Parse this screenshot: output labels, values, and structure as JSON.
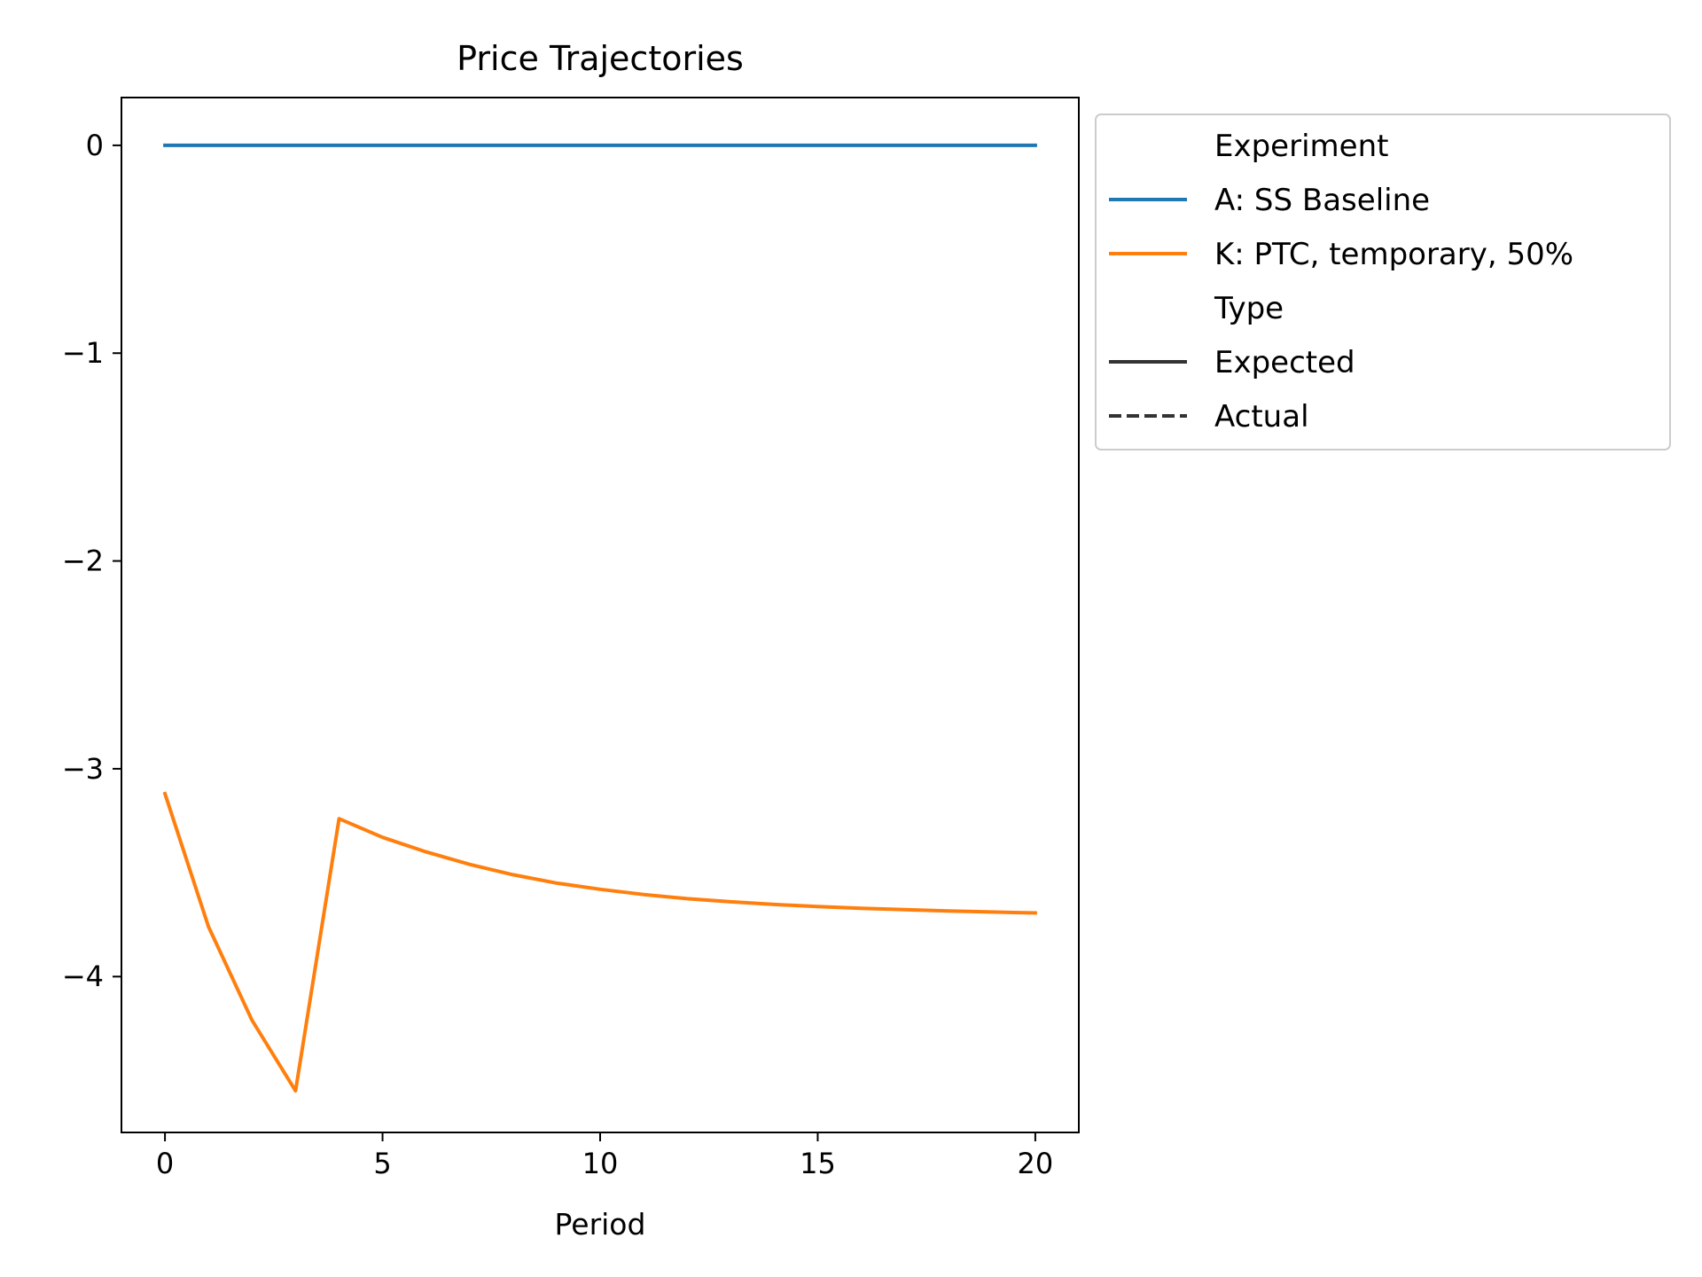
{
  "chart_data": {
    "type": "line",
    "title": "Price Trajectories",
    "xlabel": "Period",
    "ylabel": "",
    "xlim": [
      -1,
      21
    ],
    "ylim": [
      -4.75,
      0.23
    ],
    "xticks": [
      0,
      5,
      10,
      15,
      20
    ],
    "xtick_labels": [
      "0",
      "5",
      "10",
      "15",
      "20"
    ],
    "yticks": [
      0,
      -1,
      -2,
      -3,
      -4
    ],
    "ytick_labels": [
      "0",
      "−1",
      "−2",
      "−3",
      "−4"
    ],
    "grid": false,
    "legend": {
      "placement": "outside-right-top",
      "sections": [
        {
          "title": "Experiment",
          "entries": [
            {
              "label": "A: SS Baseline",
              "color": "#1f77b4",
              "style": "solid"
            },
            {
              "label": "K: PTC, temporary, 50%",
              "color": "#ff7f0e",
              "style": "solid"
            }
          ]
        },
        {
          "title": "Type",
          "entries": [
            {
              "label": "Expected",
              "color": "#333333",
              "style": "solid"
            },
            {
              "label": "Actual",
              "color": "#333333",
              "style": "dashed"
            }
          ]
        }
      ]
    },
    "x": [
      0,
      1,
      2,
      3,
      4,
      5,
      6,
      7,
      8,
      9,
      10,
      11,
      12,
      13,
      14,
      15,
      16,
      17,
      18,
      19,
      20
    ],
    "series": [
      {
        "name": "A: SS Baseline",
        "color": "#1f77b4",
        "style": "solid",
        "values": [
          0,
          0,
          0,
          0,
          0,
          0,
          0,
          0,
          0,
          0,
          0,
          0,
          0,
          0,
          0,
          0,
          0,
          0,
          0,
          0,
          0
        ]
      },
      {
        "name": "K: PTC, temporary, 50%",
        "color": "#ff7f0e",
        "style": "solid",
        "values": [
          -3.12,
          -3.76,
          -4.21,
          -4.55,
          -3.24,
          -3.33,
          -3.4,
          -3.46,
          -3.51,
          -3.55,
          -3.58,
          -3.605,
          -3.625,
          -3.64,
          -3.653,
          -3.663,
          -3.671,
          -3.678,
          -3.684,
          -3.689,
          -3.694
        ]
      }
    ]
  }
}
